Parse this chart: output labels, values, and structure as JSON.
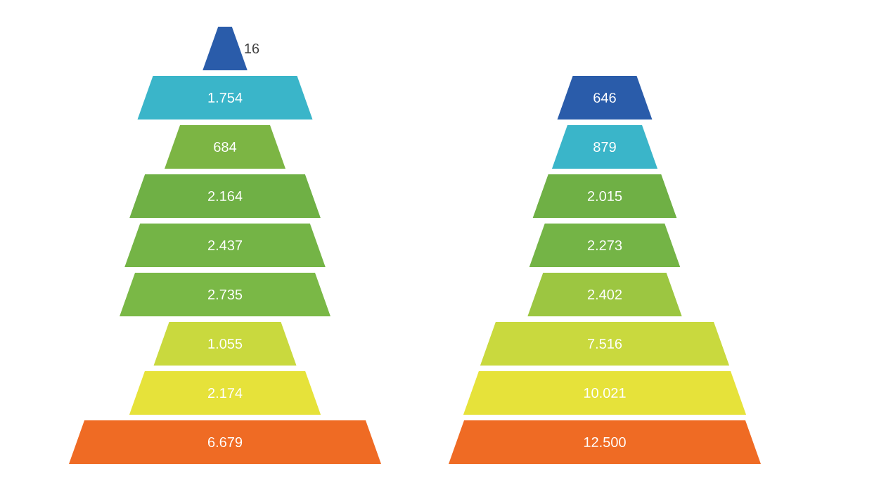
{
  "chart_data": [
    {
      "type": "other",
      "categories": [
        null,
        null,
        null,
        null,
        null,
        null,
        null,
        null,
        null
      ],
      "values": [
        16,
        1754,
        684,
        2164,
        2437,
        2735,
        1055,
        2174,
        6679
      ],
      "value_labels": [
        "16",
        "1.754",
        "684",
        "2.164",
        "2.437",
        "2.735",
        "1.055",
        "2.174",
        "6.679"
      ],
      "colors": [
        "#2a5caa",
        "#3ab5c9",
        "#7cb544",
        "#6fb045",
        "#74b446",
        "#7ab846",
        "#c9d93e",
        "#e6e23a",
        "#ef6b24"
      ]
    },
    {
      "type": "other",
      "categories": [
        null,
        null,
        null,
        null,
        null,
        null,
        null,
        null
      ],
      "values": [
        646,
        879,
        2015,
        2273,
        2402,
        7516,
        10021,
        12500
      ],
      "value_labels": [
        "646",
        "879",
        "2.015",
        "2.273",
        "2.402",
        "7.516",
        "10.021",
        "12.500"
      ],
      "colors": [
        "#2a5caa",
        "#3ab5c9",
        "#6fb045",
        "#74b446",
        "#9cc641",
        "#c9d93e",
        "#e6e23a",
        "#ef6b24"
      ]
    }
  ]
}
